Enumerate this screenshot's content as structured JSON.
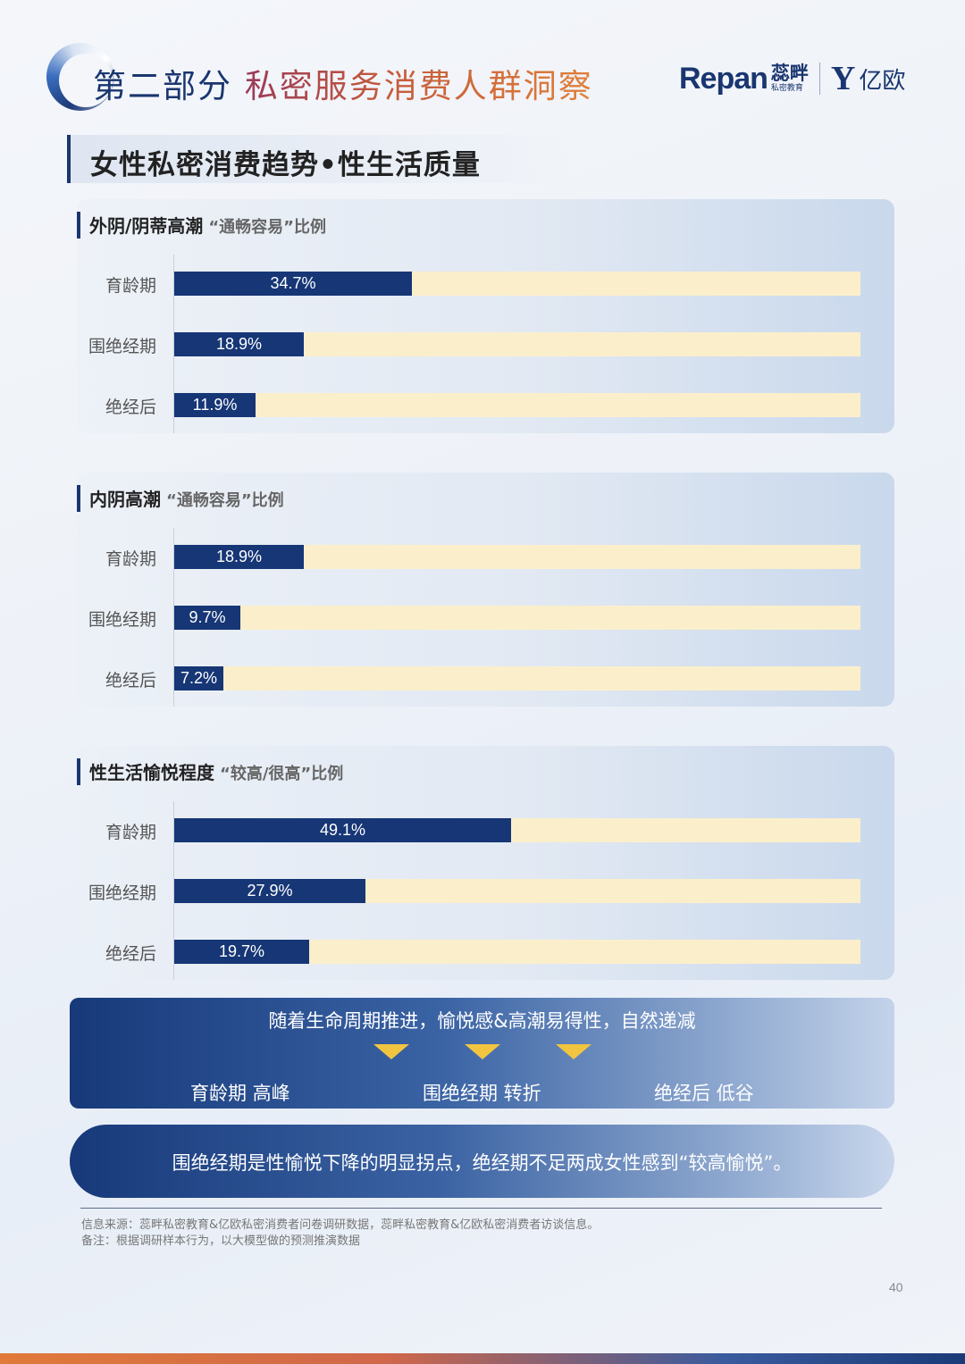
{
  "header": {
    "title_part1": "第二部分",
    "title_part2": "私密服务消费人群洞察",
    "brand_repan": "Repan",
    "brand_cn": "蕊畔",
    "brand_sub": "私密教育",
    "brand_yiou": "亿欧"
  },
  "section_title": "女性私密消费趋势•性生活质量",
  "colors": {
    "bar_fill": "#163676",
    "bar_track": "#fbefcb",
    "accent_arrow": "#f2c541"
  },
  "chart_data": [
    {
      "type": "bar",
      "orientation": "horizontal",
      "title": "外阴/阴蒂高潮",
      "subtitle": "“通畅容易”比例",
      "categories": [
        "育龄期",
        "围绝经期",
        "绝经后"
      ],
      "values": [
        34.7,
        18.9,
        11.9
      ],
      "value_labels": [
        "34.7%",
        "18.9%",
        "11.9%"
      ],
      "unit": "%",
      "xlim": [
        0,
        100
      ]
    },
    {
      "type": "bar",
      "orientation": "horizontal",
      "title": "内阴高潮",
      "subtitle": "“通畅容易”比例",
      "categories": [
        "育龄期",
        "围绝经期",
        "绝经后"
      ],
      "values": [
        18.9,
        9.7,
        7.2
      ],
      "value_labels": [
        "18.9%",
        "9.7%",
        "7.2%"
      ],
      "unit": "%",
      "xlim": [
        0,
        100
      ]
    },
    {
      "type": "bar",
      "orientation": "horizontal",
      "title": "性生活愉悦程度",
      "subtitle": "“较高/很高”比例",
      "categories": [
        "育龄期",
        "围绝经期",
        "绝经后"
      ],
      "values": [
        49.1,
        27.9,
        19.7
      ],
      "value_labels": [
        "49.1%",
        "27.9%",
        "19.7%"
      ],
      "unit": "%",
      "xlim": [
        0,
        100
      ]
    }
  ],
  "summary": {
    "headline": "随着生命周期推进，愉悦感&高潮易得性，自然递减",
    "stages": [
      "育龄期 高峰",
      "围绝经期 转折",
      "绝经后 低谷"
    ]
  },
  "conclusion": "围绝经期是性愉悦下降的明显拐点，绝经期不足两成女性感到“较高愉悦”。",
  "notes": {
    "source": "信息来源：蕊畔私密教育&亿欧私密消费者问卷调研数据，蕊畔私密教育&亿欧私密消费者访谈信息。",
    "remark": "备注：根据调研样本行为，以大模型做的预测推演数据"
  },
  "page_number": "40"
}
